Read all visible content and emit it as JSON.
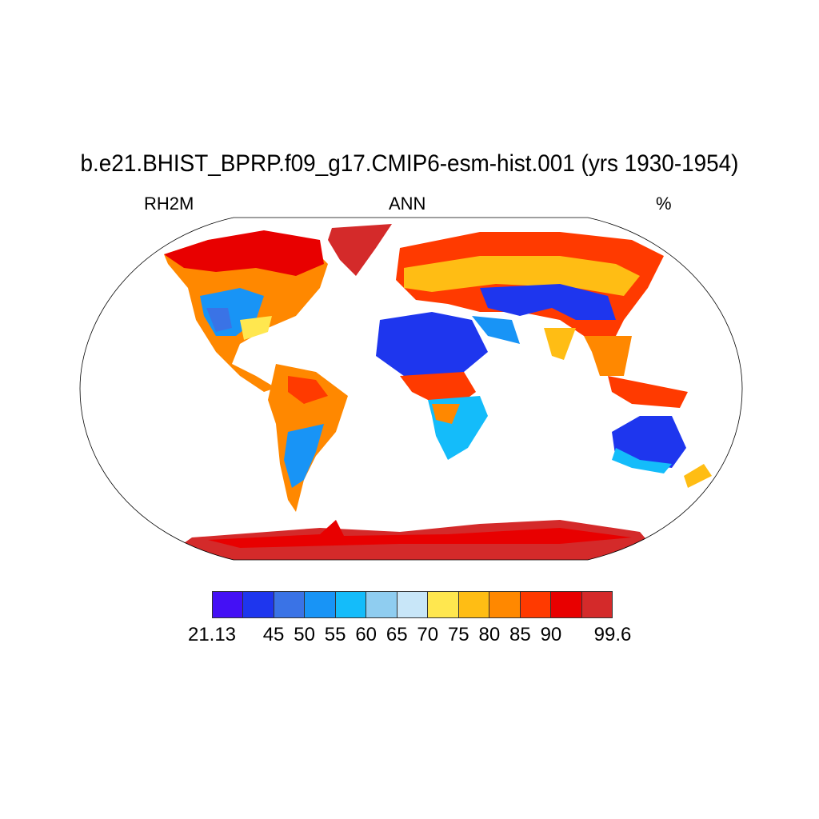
{
  "title": "b.e21.BHIST_BPRP.f09_g17.CMIP6-esm-hist.001 (yrs 1930-1954)",
  "left_label": "RH2M",
  "center_label": "ANN",
  "right_label": "%",
  "map": {
    "projection": "Robinson",
    "variable": "2m relative humidity",
    "ocean_masked": true
  },
  "colorbar": {
    "colors": [
      "#4410f5",
      "#1e36ee",
      "#3a73e6",
      "#1894f6",
      "#14bcfa",
      "#8fcdf0",
      "#c8e6f8",
      "#ffe74f",
      "#ffbd14",
      "#ff8800",
      "#ff3a00",
      "#e80000",
      "#d42a2a"
    ],
    "boundaries": [
      "21.13",
      "",
      "45",
      "50",
      "55",
      "60",
      "65",
      "70",
      "75",
      "80",
      "85",
      "90",
      "",
      "99.6"
    ]
  }
}
